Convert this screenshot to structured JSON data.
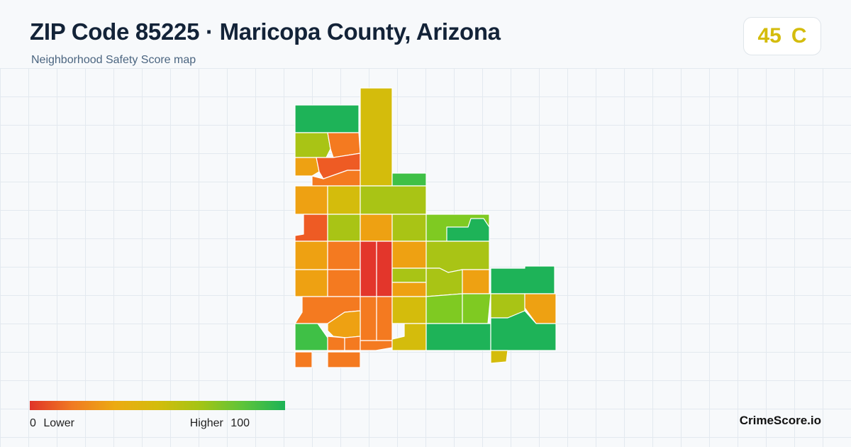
{
  "header": {
    "title": "ZIP Code 85225 · Maricopa County, Arizona",
    "subtitle": "Neighborhood Safety Score map"
  },
  "score": {
    "value": "45",
    "grade": "C",
    "color": "#d4bc0c"
  },
  "legend": {
    "min_value": "0",
    "min_label": "Lower",
    "max_label": "Higher",
    "max_value": "100",
    "colors": [
      "#e03428",
      "#f07a22",
      "#ecaa12",
      "#d4bc0c",
      "#a4c414",
      "#5ec43a",
      "#1cb357"
    ]
  },
  "brand": "CrimeScore.io",
  "map": {
    "palette": {
      "red": "#e3362b",
      "red_orange": "#ee5b24",
      "orange": "#f47a20",
      "amber": "#eea112",
      "gold": "#d4bc0c",
      "yellow_green": "#a9c415",
      "lime": "#7fca22",
      "green": "#3fc046",
      "dark_green": "#1eb358"
    },
    "border_color": "#ffffff"
  }
}
